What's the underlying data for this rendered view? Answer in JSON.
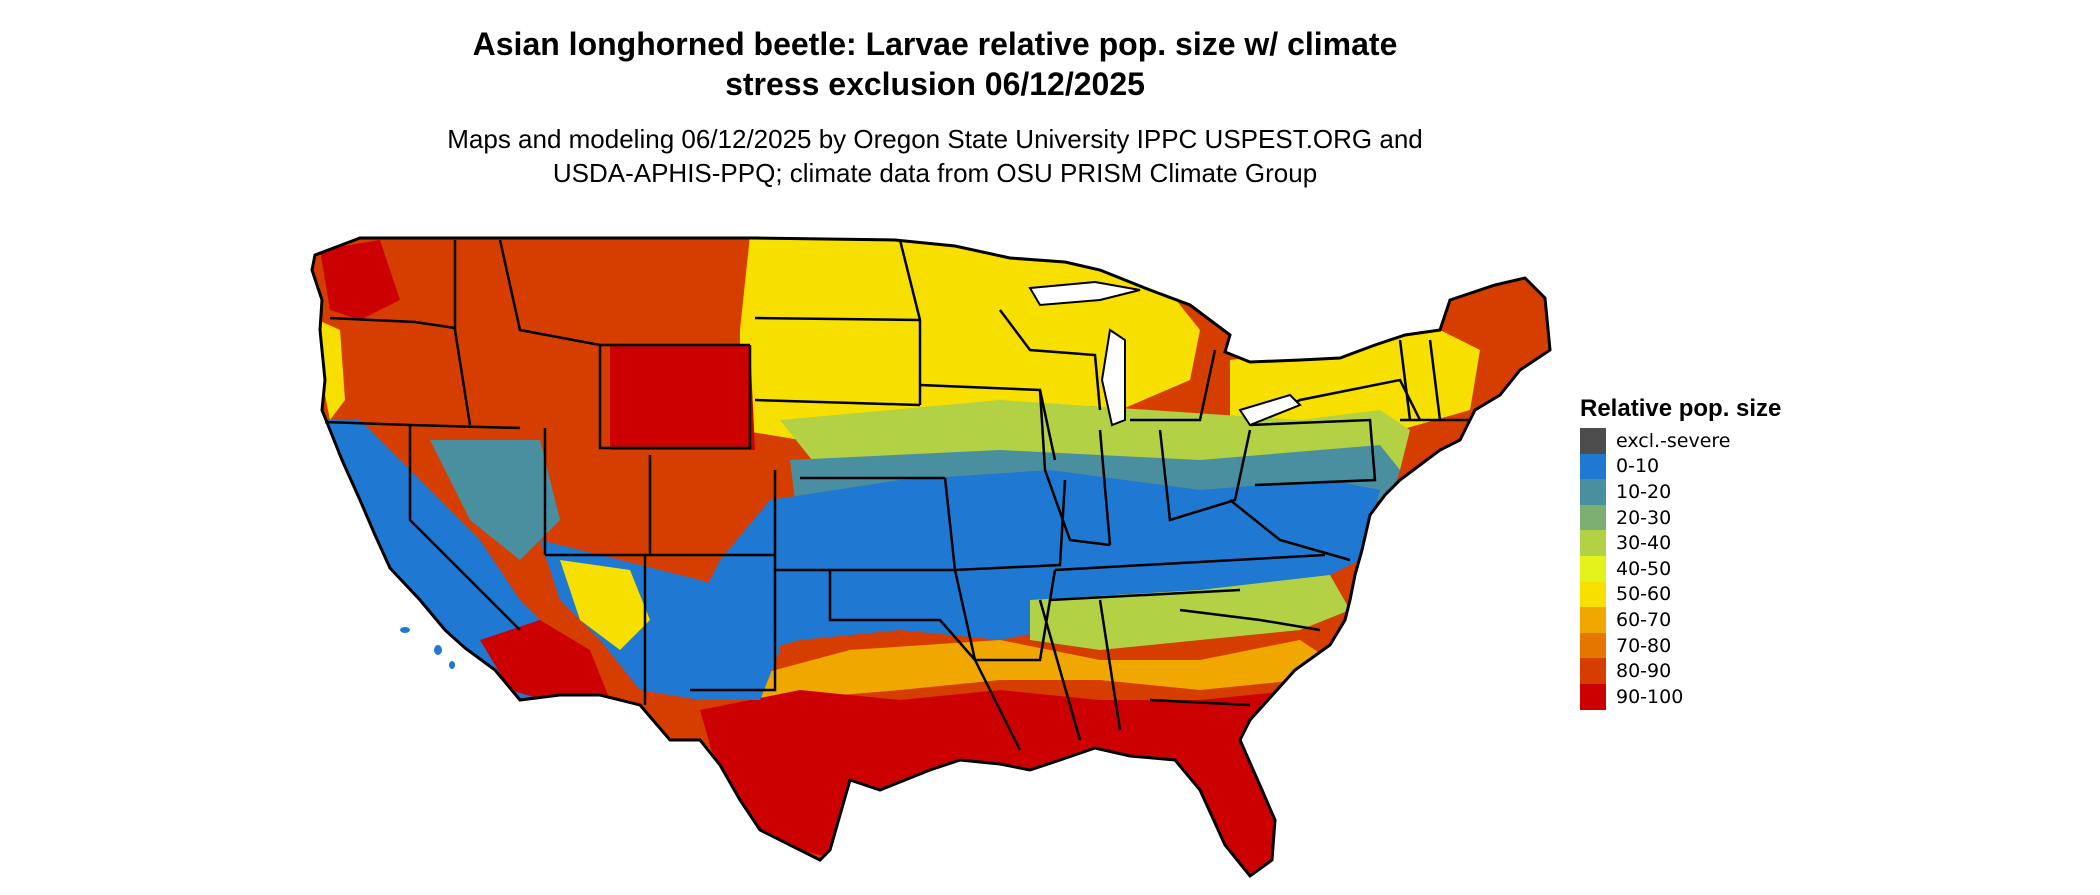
{
  "title_line1": "Asian longhorned beetle: Larvae relative pop. size w/ climate",
  "title_line2": "stress exclusion 06/12/2025",
  "subtitle_line1": "Maps and modeling 06/12/2025 by Oregon State University IPPC USPEST.ORG and",
  "subtitle_line2": "USDA-APHIS-PPQ; climate data from OSU PRISM Climate Group",
  "legend": {
    "title": "Relative pop. size",
    "items": [
      {
        "label": "excl.-severe",
        "color": "#4d4d4d"
      },
      {
        "label": "0-10",
        "color": "#1f78d1"
      },
      {
        "label": "10-20",
        "color": "#4a8fa0"
      },
      {
        "label": "20-30",
        "color": "#7daf72"
      },
      {
        "label": "30-40",
        "color": "#b2d145"
      },
      {
        "label": "40-50",
        "color": "#e3f21a"
      },
      {
        "label": "50-60",
        "color": "#f7e000"
      },
      {
        "label": "60-70",
        "color": "#f0a800"
      },
      {
        "label": "70-80",
        "color": "#e57600"
      },
      {
        "label": "80-90",
        "color": "#d63e00"
      },
      {
        "label": "90-100",
        "color": "#cc0000"
      }
    ]
  }
}
